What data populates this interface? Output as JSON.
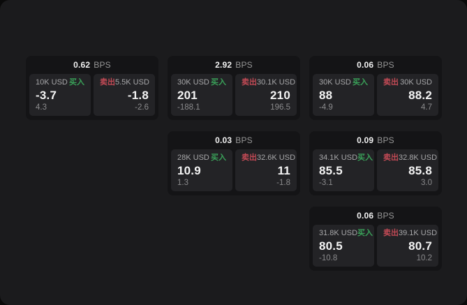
{
  "labels": {
    "bps_unit": "BPS",
    "buy": "买入",
    "sell": "卖出"
  },
  "colors": {
    "buy_green": "#3aa159",
    "sell_red": "#c24a55",
    "window_bg": "#1b1b1d",
    "card_bg": "#141416",
    "panel_bg": "#232326"
  },
  "cards": [
    {
      "col": 1,
      "row": 1,
      "bps": "0.62",
      "buy": {
        "amount": "10K USD",
        "value": "-3.7",
        "delta": "4.3"
      },
      "sell": {
        "amount": "5.5K USD",
        "value": "-1.8",
        "delta": "-2.6"
      }
    },
    {
      "col": 2,
      "row": 1,
      "bps": "2.92",
      "buy": {
        "amount": "30K USD",
        "value": "201",
        "delta": "-188.1"
      },
      "sell": {
        "amount": "30.1K USD",
        "value": "210",
        "delta": "196.5"
      }
    },
    {
      "col": 3,
      "row": 1,
      "bps": "0.06",
      "buy": {
        "amount": "30K USD",
        "value": "88",
        "delta": "-4.9"
      },
      "sell": {
        "amount": "30K USD",
        "value": "88.2",
        "delta": "4.7"
      }
    },
    {
      "col": 2,
      "row": 2,
      "bps": "0.03",
      "buy": {
        "amount": "28K USD",
        "value": "10.9",
        "delta": "1.3"
      },
      "sell": {
        "amount": "32.6K USD",
        "value": "11",
        "delta": "-1.8"
      }
    },
    {
      "col": 3,
      "row": 2,
      "bps": "0.09",
      "buy": {
        "amount": "34.1K USD",
        "value": "85.5",
        "delta": "-3.1"
      },
      "sell": {
        "amount": "32.8K USD",
        "value": "85.8",
        "delta": "3.0"
      }
    },
    {
      "col": 3,
      "row": 3,
      "bps": "0.06",
      "buy": {
        "amount": "31.8K USD",
        "value": "80.5",
        "delta": "-10.8"
      },
      "sell": {
        "amount": "39.1K USD",
        "value": "80.7",
        "delta": "10.2"
      }
    }
  ]
}
